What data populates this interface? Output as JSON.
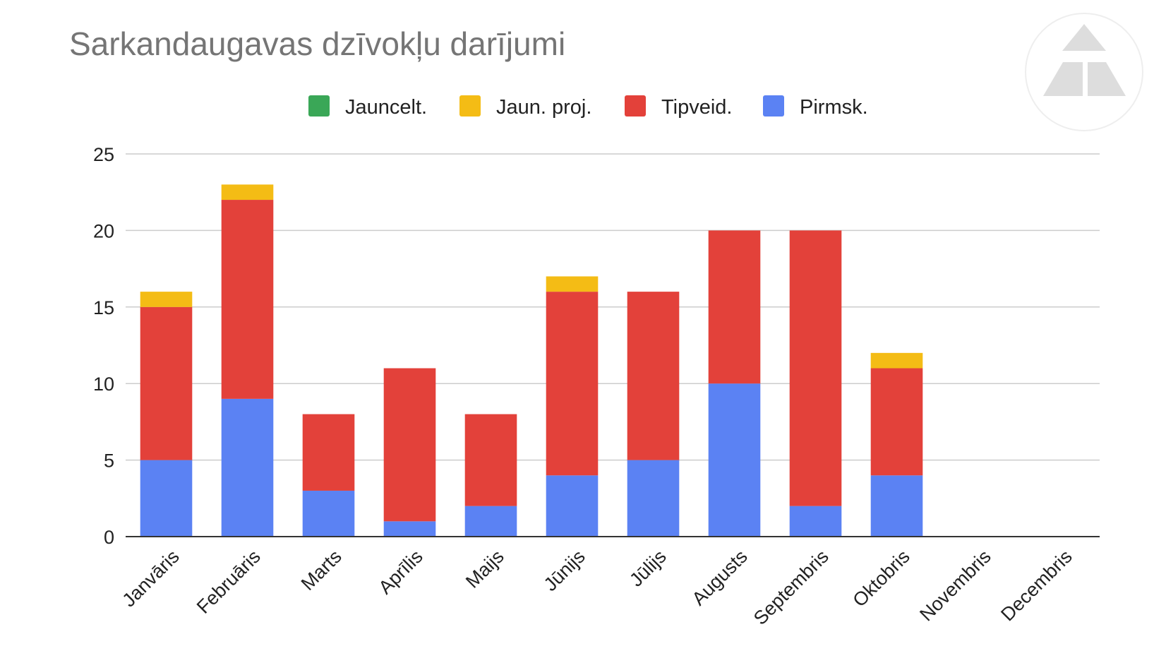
{
  "chart_data": {
    "type": "bar",
    "stacked": true,
    "title": "Sarkandaugavas dzīvokļu darījumi",
    "xlabel": "",
    "ylabel": "",
    "ylim": [
      0,
      25
    ],
    "yticks": [
      0,
      5,
      10,
      15,
      20,
      25
    ],
    "grid": true,
    "legend": "top-center",
    "categories": [
      "Janvāris",
      "Februāris",
      "Marts",
      "Aprīlis",
      "Maijs",
      "Jūnijs",
      "Jūlijs",
      "Augusts",
      "Septembris",
      "Oktobris",
      "Novembris",
      "Decembris"
    ],
    "series": [
      {
        "name": "Pirmsk.",
        "color": "#5b82f3",
        "values": [
          5,
          9,
          3,
          1,
          2,
          4,
          5,
          10,
          2,
          4,
          0,
          0
        ]
      },
      {
        "name": "Tipveid.",
        "color": "#e3413a",
        "values": [
          10,
          13,
          5,
          10,
          6,
          12,
          11,
          10,
          18,
          7,
          0,
          0
        ]
      },
      {
        "name": "Jaun. proj.",
        "color": "#f4bc15",
        "values": [
          1,
          1,
          0,
          0,
          0,
          1,
          0,
          0,
          0,
          1,
          0,
          0
        ]
      },
      {
        "name": "Jauncelt.",
        "color": "#3aa757",
        "values": [
          0,
          0,
          0,
          0,
          0,
          0,
          0,
          0,
          0,
          0,
          0,
          0
        ]
      }
    ],
    "legend_order": [
      "Jauncelt.",
      "Jaun. proj.",
      "Tipveid.",
      "Pirmsk."
    ]
  },
  "logo": {
    "icon": "triangle-logo-icon",
    "color": "#dddddd"
  }
}
